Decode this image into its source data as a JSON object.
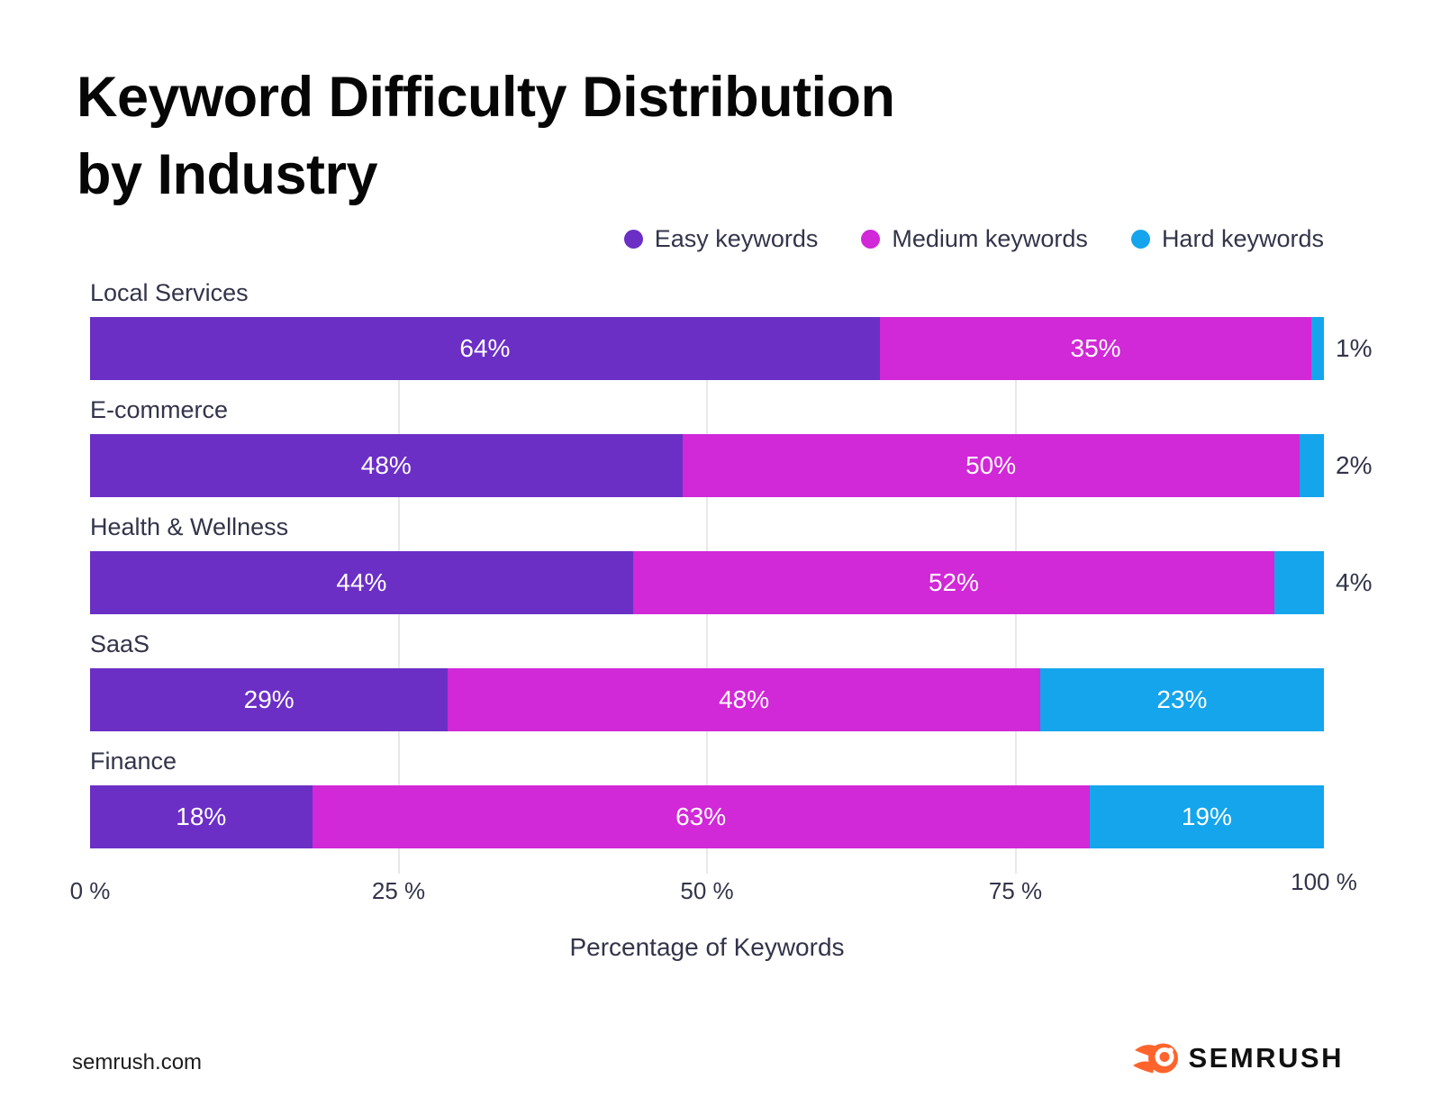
{
  "title": {
    "line1": "Keyword Difficulty Distribution",
    "line2": "by Industry"
  },
  "chart_data": {
    "type": "bar",
    "orientation": "horizontal",
    "stacked": true,
    "title": "Keyword Difficulty Distribution by Industry",
    "categories": [
      "Local Services",
      "E-commerce",
      "Health & Wellness",
      "SaaS",
      "Finance"
    ],
    "series": [
      {
        "name": "Easy keywords",
        "color": "#6B2FC6",
        "values": [
          64,
          48,
          44,
          29,
          18
        ]
      },
      {
        "name": "Medium keywords",
        "color": "#D128D8",
        "values": [
          35,
          50,
          52,
          48,
          63
        ]
      },
      {
        "name": "Hard keywords",
        "color": "#14A5EC",
        "values": [
          1,
          2,
          4,
          23,
          19
        ]
      }
    ],
    "xlabel": "Percentage of Keywords",
    "xlim": [
      0,
      100
    ],
    "x_ticks": [
      "0 %",
      "25 %",
      "50 %",
      "75 %",
      "100 %"
    ],
    "gridlines_at": [
      25,
      50,
      75
    ],
    "value_suffix": "%",
    "inside_label_min_pct": 8,
    "legend_position": "top-right",
    "grid": "vertical-light"
  },
  "footer": {
    "site": "semrush.com",
    "brand": "SEMRUSH"
  },
  "colors": {
    "easy_purple": "#6B2FC6",
    "medium_magenta": "#D128D8",
    "hard_cyan": "#14A5EC",
    "text_dark": "#33344A",
    "gridline": "#E8E8EA",
    "brand_orange": "#FF642D"
  }
}
